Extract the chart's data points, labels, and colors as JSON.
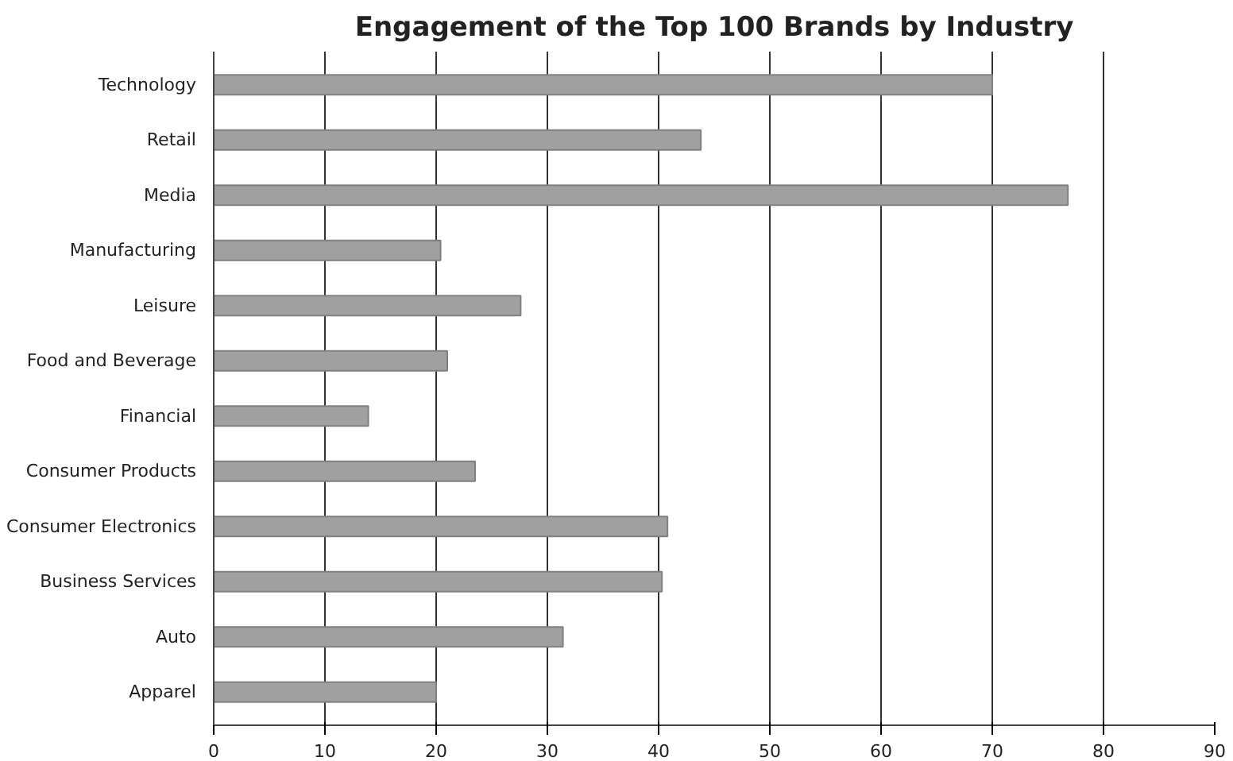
{
  "chart_data": {
    "type": "bar",
    "orientation": "horizontal",
    "title": "Engagement of the Top 100 Brands by Industry",
    "categories": [
      "Technology",
      "Retail",
      "Media",
      "Manufacturing",
      "Leisure",
      "Food and Beverage",
      "Financial",
      "Consumer Products",
      "Consumer Electronics",
      "Business Services",
      "Auto",
      "Apparel"
    ],
    "values": [
      70,
      43.8,
      76.8,
      20.4,
      27.6,
      21,
      13.9,
      23.5,
      40.8,
      40.3,
      31.4,
      20
    ],
    "color": "#a0a0a0",
    "xlim": [
      0,
      90
    ],
    "xticks": [
      0,
      10,
      20,
      30,
      40,
      50,
      60,
      70,
      80,
      90
    ],
    "grid": "x"
  }
}
